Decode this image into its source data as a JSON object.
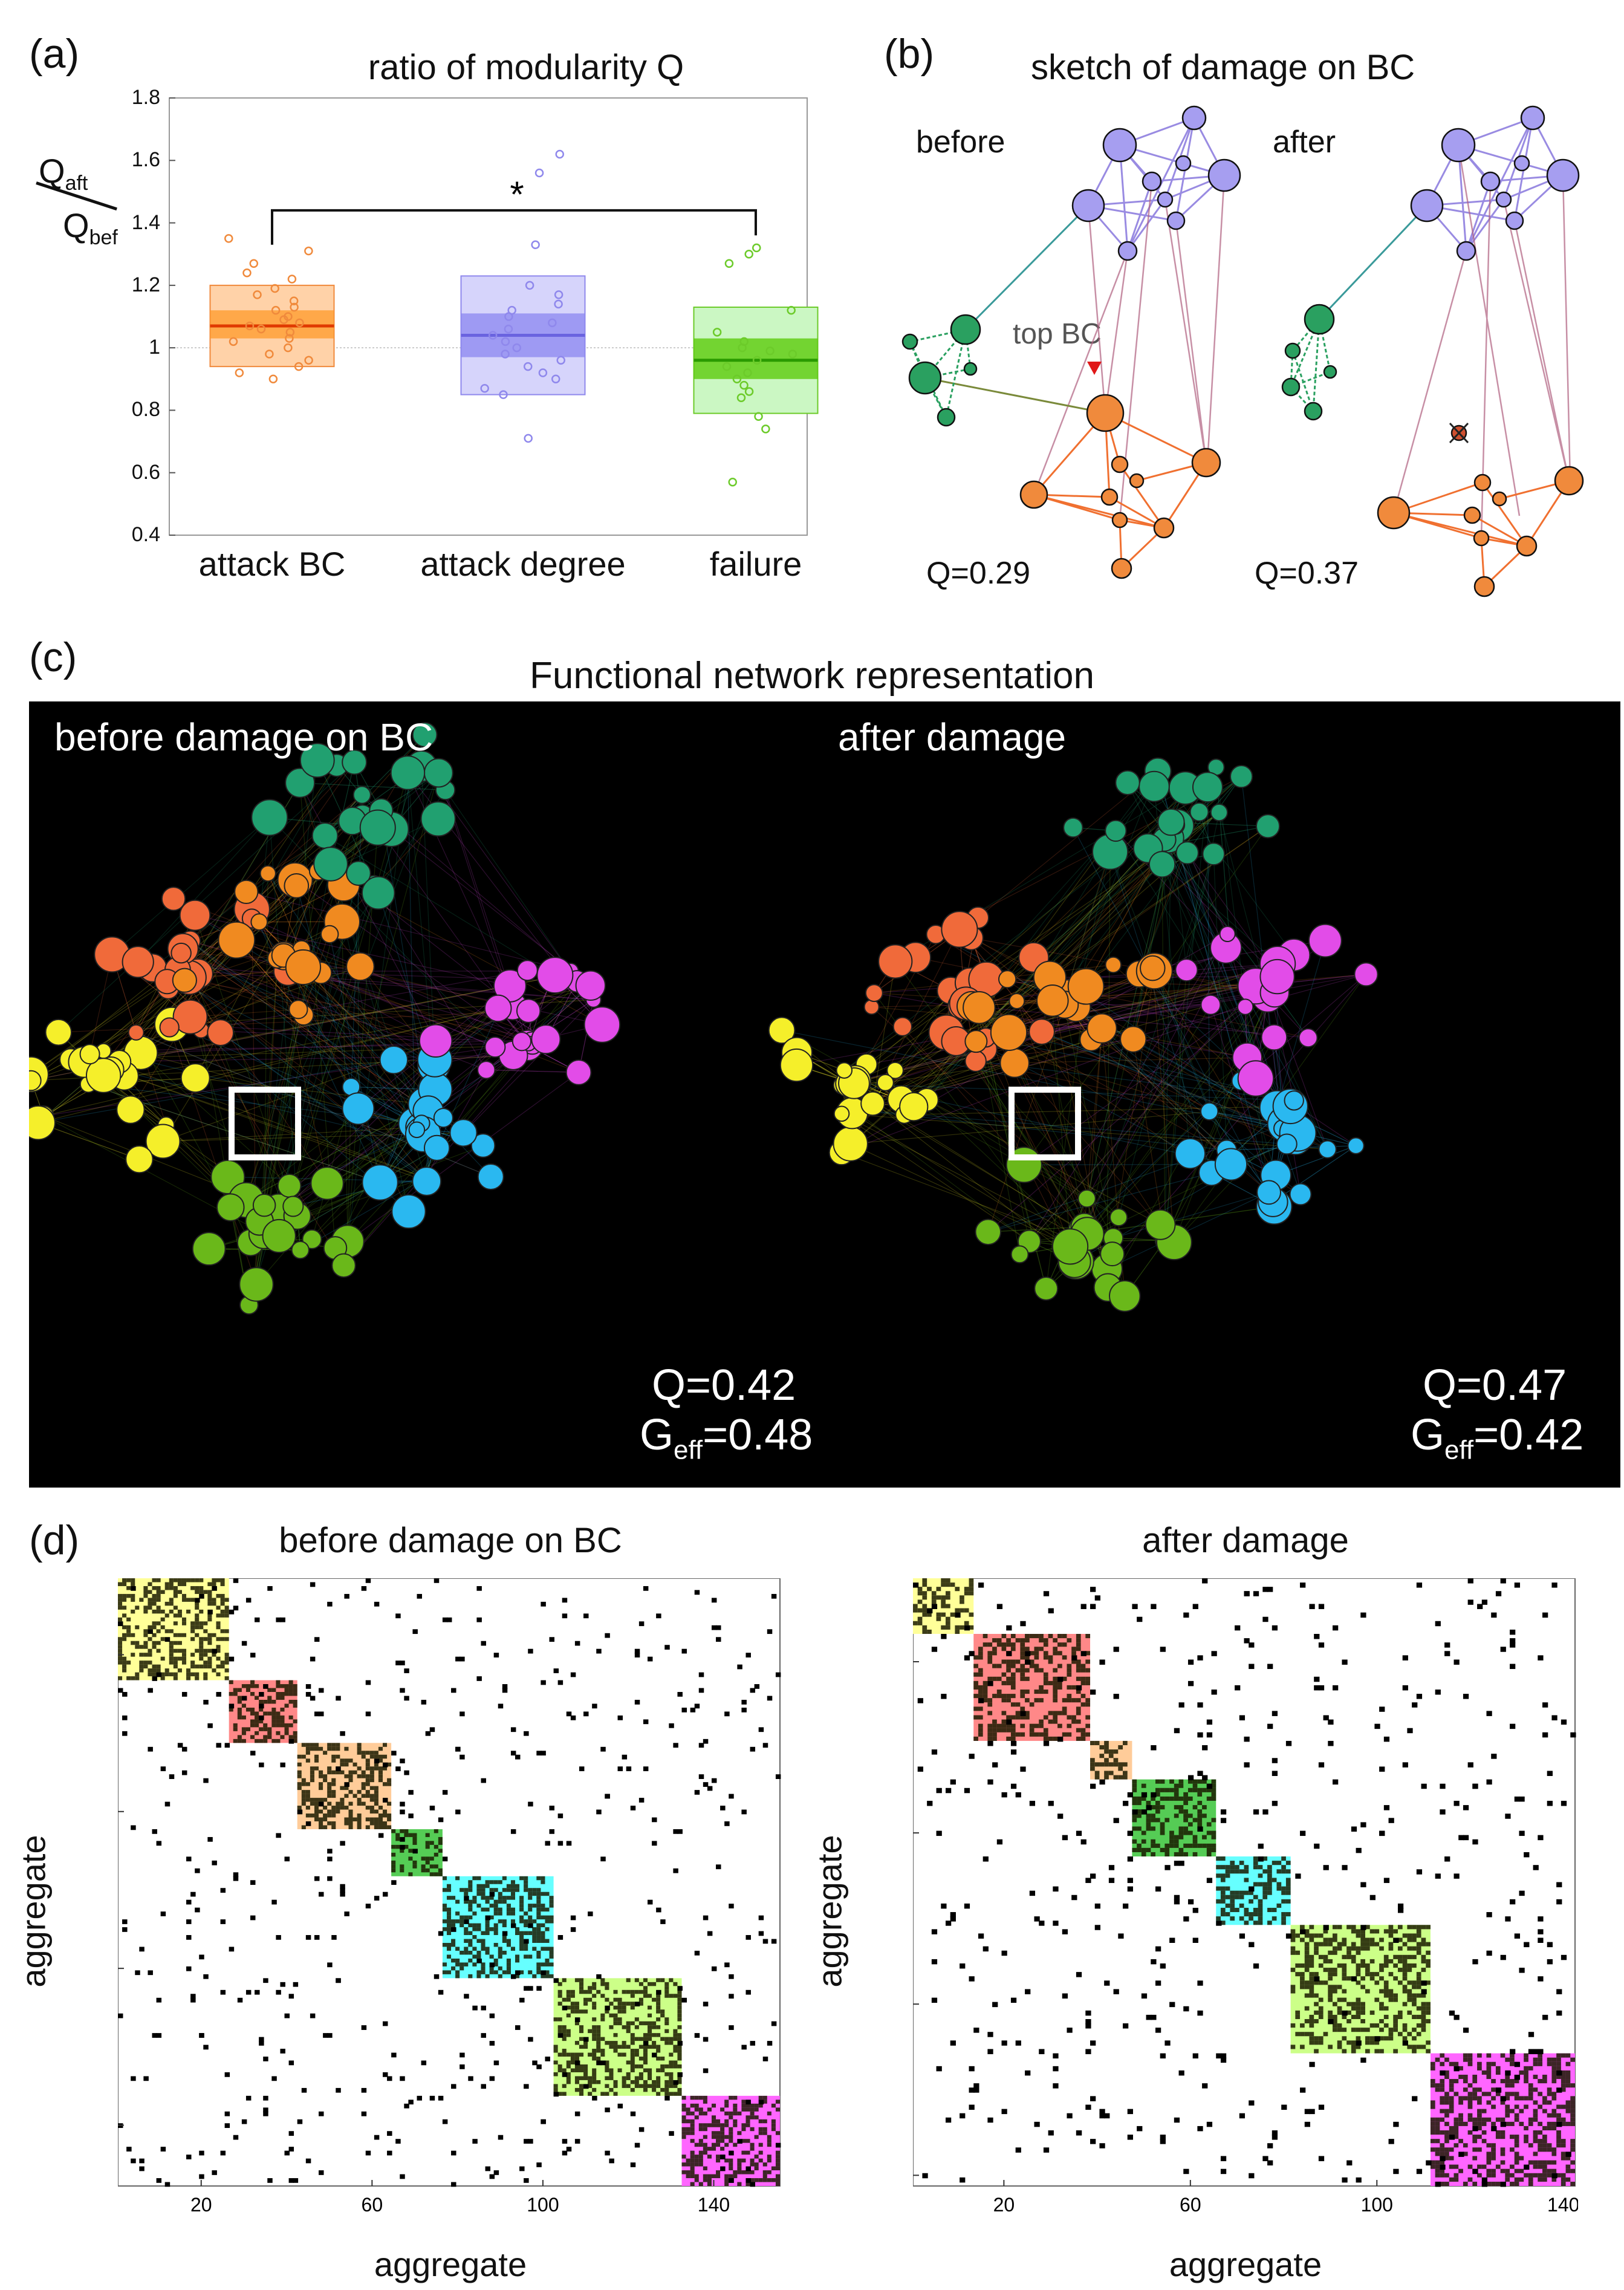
{
  "panel_a": {
    "label": "(a)",
    "title": "ratio of modularity Q",
    "ylabel_num": "Q",
    "ylabel_num_sub": "aft",
    "ylabel_den": "Q",
    "ylabel_den_sub": "bef",
    "significance": "*",
    "yticks": [
      "1.8",
      "1.6",
      "1.4",
      "1.2",
      "1",
      "0.8",
      "0.6",
      "0.4"
    ],
    "categories": [
      "attack BC",
      "attack degree",
      "failure"
    ],
    "colors": [
      "#f08a3c",
      "#8f88ec",
      "#6ccb2a"
    ]
  },
  "panel_b": {
    "label": "(b)",
    "title": "sketch of damage on BC",
    "before_label": "before",
    "after_label": "after",
    "annotation": "top BC",
    "q_before": "Q=0.29",
    "q_after": "Q=0.37"
  },
  "panel_c": {
    "label": "(c)",
    "title": "Functional network representation",
    "left_title": "before damage on BC",
    "right_title": "after damage",
    "left_q": "Q=0.42",
    "left_geff_prefix": "G",
    "left_geff_sub": "eff",
    "left_geff_value": "=0.48",
    "right_q": "Q=0.47",
    "right_geff_prefix": "G",
    "right_geff_sub": "eff",
    "right_geff_value": "=0.42"
  },
  "panel_d": {
    "label": "(d)",
    "left_title": "before damage on BC",
    "right_title": "after damage",
    "xlabel": "aggregate",
    "ylabel": "aggregate",
    "left_ticks": [
      "20",
      "60",
      "100",
      "140"
    ],
    "right_ticks": [
      "20",
      "60",
      "100",
      "140"
    ]
  },
  "chart_data": [
    {
      "type": "box",
      "title": "ratio of modularity Q",
      "ylabel": "Q_aft / Q_bef",
      "ylim": [
        0.4,
        1.8
      ],
      "categories": [
        "attack BC",
        "attack degree",
        "failure"
      ],
      "series": [
        {
          "name": "attack BC",
          "mean": 1.07,
          "inner": [
            1.03,
            1.12
          ],
          "outer": [
            0.94,
            1.2
          ],
          "points": [
            1.35,
            1.31,
            1.27,
            1.24,
            1.22,
            1.19,
            1.17,
            1.15,
            1.13,
            1.12,
            1.1,
            1.09,
            1.08,
            1.07,
            1.06,
            1.05,
            1.03,
            1.02,
            1.0,
            0.98,
            0.96,
            0.94,
            0.92,
            0.9
          ]
        },
        {
          "name": "attack degree",
          "mean": 1.04,
          "inner": [
            0.97,
            1.11
          ],
          "outer": [
            0.85,
            1.23
          ],
          "points": [
            1.62,
            1.56,
            1.33,
            1.2,
            1.17,
            1.14,
            1.12,
            1.1,
            1.08,
            1.06,
            1.04,
            1.02,
            1.0,
            0.98,
            0.96,
            0.94,
            0.92,
            0.9,
            0.87,
            0.85,
            0.71
          ]
        },
        {
          "name": "failure",
          "mean": 0.96,
          "inner": [
            0.9,
            1.03
          ],
          "outer": [
            0.79,
            1.13
          ],
          "points": [
            1.32,
            1.3,
            1.27,
            1.12,
            1.05,
            1.02,
            1.0,
            0.99,
            0.98,
            0.96,
            0.94,
            0.92,
            0.9,
            0.88,
            0.86,
            0.84,
            0.78,
            0.74,
            0.57
          ]
        }
      ]
    },
    {
      "type": "heatmap",
      "title": "before damage on BC",
      "xlabel": "aggregate",
      "ylabel": "aggregate",
      "n": 155,
      "blocks": [
        {
          "start": 1,
          "end": 26,
          "color": "#ffff99"
        },
        {
          "start": 27,
          "end": 42,
          "color": "#ff8888"
        },
        {
          "start": 43,
          "end": 64,
          "color": "#ffcc99"
        },
        {
          "start": 65,
          "end": 76,
          "color": "#55cc55"
        },
        {
          "start": 77,
          "end": 102,
          "color": "#66ffff"
        },
        {
          "start": 103,
          "end": 132,
          "color": "#ccff88"
        },
        {
          "start": 133,
          "end": 155,
          "color": "#ff66ff"
        }
      ]
    },
    {
      "type": "heatmap",
      "title": "after damage",
      "xlabel": "aggregate",
      "ylabel": "aggregate",
      "n": 142,
      "blocks": [
        {
          "start": 1,
          "end": 13,
          "color": "#ffff99"
        },
        {
          "start": 14,
          "end": 38,
          "color": "#ff8888"
        },
        {
          "start": 39,
          "end": 47,
          "color": "#ffcc99"
        },
        {
          "start": 48,
          "end": 65,
          "color": "#55cc55"
        },
        {
          "start": 66,
          "end": 81,
          "color": "#66ffff"
        },
        {
          "start": 82,
          "end": 111,
          "color": "#ccff88"
        },
        {
          "start": 112,
          "end": 142,
          "color": "#ff66ff"
        }
      ]
    }
  ]
}
